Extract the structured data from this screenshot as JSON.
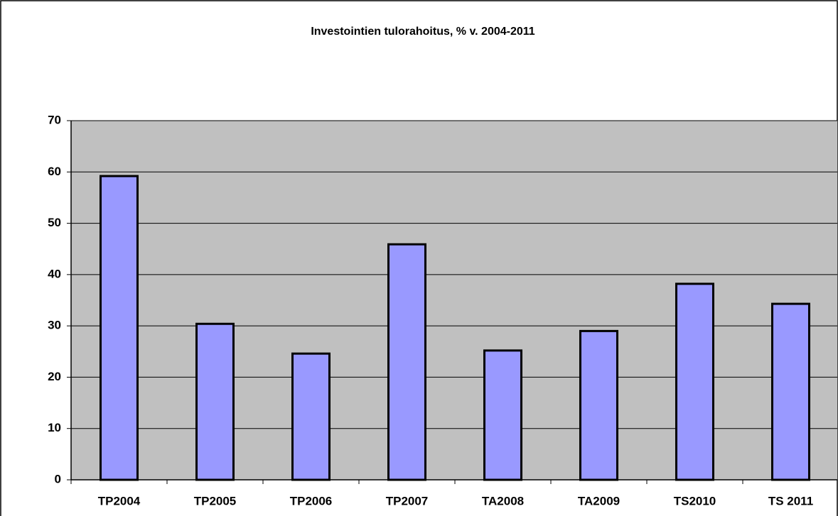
{
  "chart_data": {
    "type": "bar",
    "title": "Investointien tulorahoitus, % v. 2004-2011",
    "categories": [
      "TP2004",
      "TP2005",
      "TP2006",
      "TP2007",
      "TA2008",
      "TA2009",
      "TS2010",
      "TS 2011"
    ],
    "values": [
      59.2,
      30.4,
      24.6,
      45.9,
      25.2,
      29.0,
      38.2,
      34.3
    ],
    "color": "#9999ff",
    "plot_background": "#c0c0c0",
    "ylim": [
      0,
      70
    ],
    "yticks": [
      0,
      10,
      20,
      30,
      40,
      50,
      60,
      70
    ],
    "grid": true
  }
}
